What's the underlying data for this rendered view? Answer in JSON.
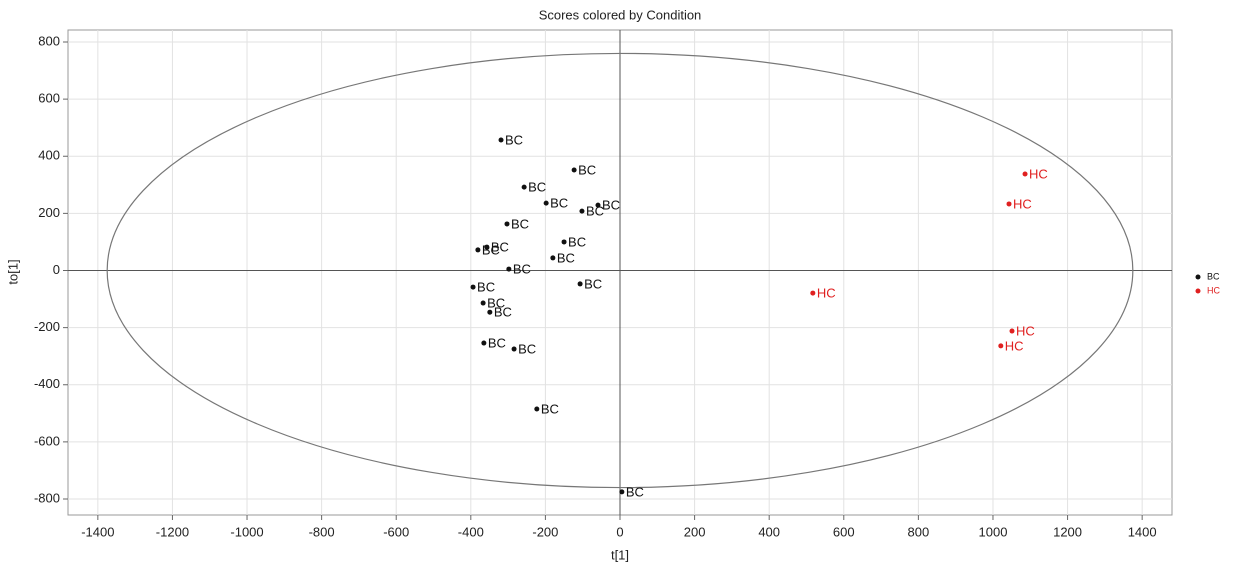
{
  "chart_data": {
    "type": "scatter",
    "title": "Scores colored by Condition",
    "x_label": "t[1]",
    "y_label": "to[1]",
    "xlim": [
      -1480,
      1480
    ],
    "ylim": [
      -856,
      842
    ],
    "xticks": [
      -1400,
      -1200,
      -1000,
      -800,
      -600,
      -400,
      -200,
      0,
      200,
      400,
      600,
      800,
      1000,
      1200,
      1400
    ],
    "yticks": [
      -800,
      -600,
      -400,
      -200,
      0,
      200,
      400,
      600,
      800
    ],
    "grid": true,
    "ellipse_radii": [
      1375,
      760
    ],
    "legend": "right",
    "series": [
      {
        "name": "BC",
        "color": "#111111",
        "x": [
          -319,
          -123,
          -257,
          -198,
          -102,
          -59,
          -303,
          -150,
          -381,
          -357,
          -180,
          -298,
          -107,
          -394,
          -367,
          -349,
          -365,
          -284,
          -223,
          5
        ],
        "values": [
          457,
          352,
          292,
          236,
          208,
          229,
          163,
          100,
          72,
          82,
          44,
          5,
          -47,
          -58,
          -114,
          -146,
          -254,
          -275,
          -485,
          -775
        ]
      },
      {
        "name": "HC",
        "color": "#e02020",
        "x": [
          1086,
          1043,
          517,
          1051,
          1021
        ],
        "values": [
          338,
          233,
          -79,
          -212,
          -264
        ]
      }
    ]
  }
}
